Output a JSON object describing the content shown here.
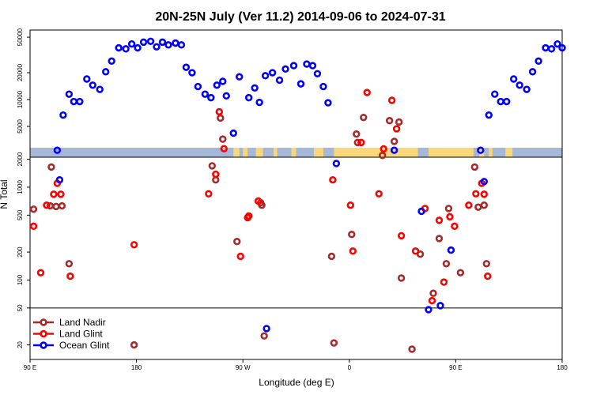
{
  "chart_data": {
    "type": "scatter",
    "title": "20N-25N July (Ver 11.2)   2014-09-06 to 2024-07-31",
    "xlabel": "Longitude (deg E)",
    "ylabel": "N Total",
    "x_ticks": [
      {
        "value": 90,
        "label": "90 E"
      },
      {
        "value": 180,
        "label": "180"
      },
      {
        "value": 270,
        "label": "90 W"
      },
      {
        "value": 360,
        "label": "0"
      },
      {
        "value": 450,
        "label": "90 E"
      },
      {
        "value": 540,
        "label": "180"
      }
    ],
    "xlim": [
      90,
      540
    ],
    "y_scale": "log",
    "ylim": [
      10,
      60000
    ],
    "y_ticks_lower": [
      20,
      50,
      100,
      200,
      500,
      1000,
      2000
    ],
    "y_ticks_upper": [
      5000,
      10000,
      20000,
      50000
    ],
    "threshold_line": 50,
    "colors": {
      "land_nadir": "#a52a2a",
      "land_glint": "#ff0000",
      "ocean_glint": "#0000ff",
      "ocean_band": "#a6b8d8",
      "land_band": "#f8d878"
    },
    "series": [
      {
        "name": "Land Nadir",
        "key": "land_nadir",
        "points": [
          [
            93,
            580
          ],
          [
            107,
            630
          ],
          [
            108,
            1650
          ],
          [
            112,
            620
          ],
          [
            117,
            630
          ],
          [
            123,
            150
          ],
          [
            178,
            20
          ],
          [
            244,
            1700
          ],
          [
            247,
            1200
          ],
          [
            251,
            6200
          ],
          [
            253,
            3600
          ],
          [
            265,
            260
          ],
          [
            285,
            680
          ],
          [
            286,
            640
          ],
          [
            288,
            25
          ],
          [
            345,
            180
          ],
          [
            347,
            21
          ],
          [
            362,
            310
          ],
          [
            366,
            4100
          ],
          [
            367,
            3300
          ],
          [
            372,
            6300
          ],
          [
            388,
            2200
          ],
          [
            394,
            5800
          ],
          [
            398,
            3400
          ],
          [
            402,
            5600
          ],
          [
            404,
            105
          ],
          [
            413,
            18
          ],
          [
            420,
            190
          ],
          [
            431,
            72
          ],
          [
            436,
            280
          ],
          [
            442,
            150
          ],
          [
            444,
            590
          ],
          [
            454,
            120
          ],
          [
            466,
            1650
          ],
          [
            469,
            610
          ],
          [
            474,
            640
          ],
          [
            476,
            150
          ]
        ]
      },
      {
        "name": "Land Glint",
        "key": "land_glint",
        "points": [
          [
            93,
            380
          ],
          [
            99,
            120
          ],
          [
            104,
            640
          ],
          [
            110,
            840
          ],
          [
            113,
            1100
          ],
          [
            116,
            840
          ],
          [
            124,
            110
          ],
          [
            178,
            240
          ],
          [
            241,
            850
          ],
          [
            247,
            1380
          ],
          [
            250,
            7300
          ],
          [
            254,
            2600
          ],
          [
            268,
            180
          ],
          [
            274,
            470
          ],
          [
            275,
            490
          ],
          [
            283,
            710
          ],
          [
            346,
            1200
          ],
          [
            361,
            640
          ],
          [
            363,
            205
          ],
          [
            370,
            3300
          ],
          [
            375,
            12000
          ],
          [
            385,
            850
          ],
          [
            389,
            2800
          ],
          [
            396,
            9800
          ],
          [
            400,
            4700
          ],
          [
            404,
            300
          ],
          [
            416,
            205
          ],
          [
            424,
            590
          ],
          [
            430,
            60
          ],
          [
            436,
            440
          ],
          [
            440,
            95
          ],
          [
            445,
            480
          ],
          [
            449,
            380
          ],
          [
            461,
            640
          ],
          [
            467,
            850
          ],
          [
            472,
            1100
          ],
          [
            474,
            840
          ],
          [
            477,
            110
          ]
        ]
      },
      {
        "name": "Ocean Glint",
        "key": "ocean_glint",
        "points": [
          [
            113,
            2500
          ],
          [
            115,
            1200
          ],
          [
            118,
            6700
          ],
          [
            123,
            11500
          ],
          [
            127,
            9500
          ],
          [
            132,
            9500
          ],
          [
            138,
            17000
          ],
          [
            143,
            14500
          ],
          [
            149,
            13000
          ],
          [
            154,
            20500
          ],
          [
            159,
            27000
          ],
          [
            165,
            38000
          ],
          [
            171,
            37000
          ],
          [
            176,
            42000
          ],
          [
            181,
            38000
          ],
          [
            186,
            44000
          ],
          [
            192,
            45000
          ],
          [
            197,
            39000
          ],
          [
            202,
            44000
          ],
          [
            207,
            41000
          ],
          [
            213,
            43000
          ],
          [
            218,
            41000
          ],
          [
            222,
            23000
          ],
          [
            227,
            20000
          ],
          [
            232,
            14000
          ],
          [
            238,
            11500
          ],
          [
            243,
            10500
          ],
          [
            248,
            14500
          ],
          [
            253,
            16000
          ],
          [
            256,
            11000
          ],
          [
            262,
            4200
          ],
          [
            267,
            18000
          ],
          [
            275,
            10500
          ],
          [
            280,
            13500
          ],
          [
            284,
            9300
          ],
          [
            289,
            18500
          ],
          [
            295,
            20000
          ],
          [
            301,
            16500
          ],
          [
            306,
            22000
          ],
          [
            313,
            24000
          ],
          [
            319,
            15000
          ],
          [
            324,
            25000
          ],
          [
            329,
            24000
          ],
          [
            333,
            19500
          ],
          [
            338,
            14000
          ],
          [
            342,
            9200
          ],
          [
            349,
            1800
          ],
          [
            398,
            2700
          ],
          [
            421,
            550
          ],
          [
            427,
            48
          ],
          [
            437,
            53
          ],
          [
            446,
            210
          ],
          [
            471,
            2500
          ],
          [
            474,
            1150
          ],
          [
            478,
            6700
          ],
          [
            483,
            11500
          ],
          [
            488,
            9500
          ],
          [
            493,
            9500
          ],
          [
            499,
            17000
          ],
          [
            504,
            14500
          ],
          [
            510,
            13000
          ],
          [
            515,
            20500
          ],
          [
            520,
            27000
          ],
          [
            526,
            38000
          ],
          [
            531,
            37000
          ],
          [
            536,
            42000
          ],
          [
            540,
            38000
          ],
          [
            290,
            30
          ]
        ]
      }
    ]
  }
}
